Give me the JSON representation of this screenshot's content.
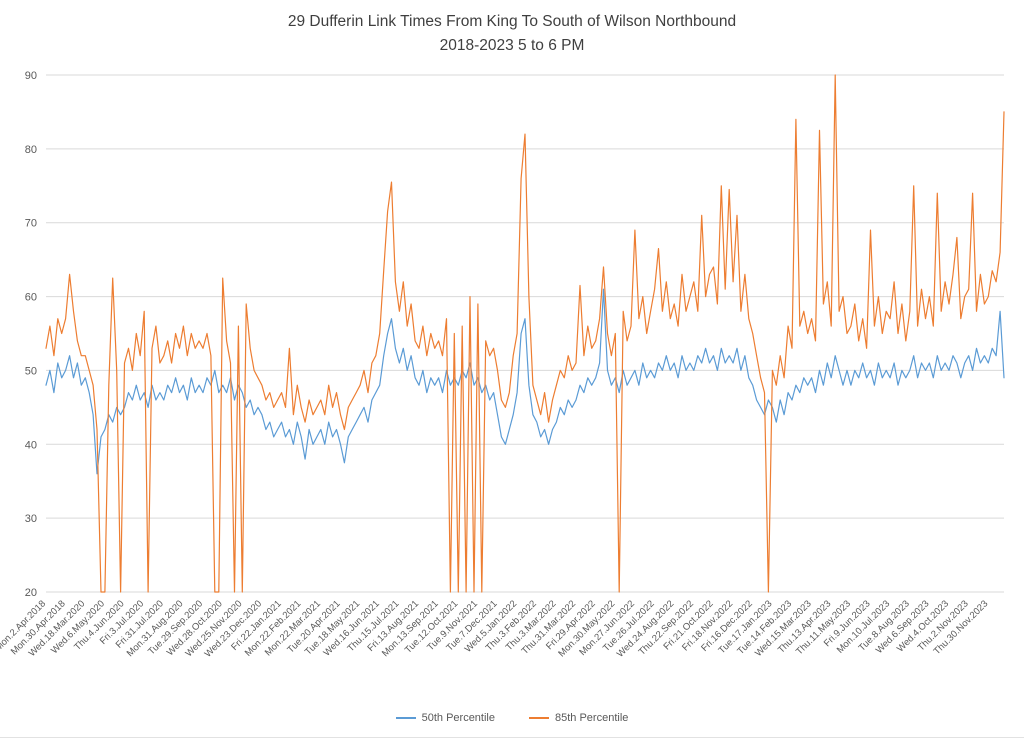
{
  "title": {
    "line1": "29 Dufferin Link Times From King To South of Wilson Northbound",
    "line2": "2018-2023 5 to 6 PM"
  },
  "legend": [
    {
      "label": "50th Percentile",
      "color": "#5B9BD5"
    },
    {
      "label": "85th Percentile",
      "color": "#ED7D31"
    }
  ],
  "chart_data": {
    "type": "line",
    "title": "29 Dufferin Link Times From King To South of Wilson Northbound",
    "subtitle": "2018-2023 5 to 6 PM",
    "xlabel": "",
    "ylabel": "",
    "ylim": [
      20,
      90
    ],
    "yticks": [
      20,
      30,
      40,
      50,
      60,
      70,
      80,
      90
    ],
    "grid": "horizontal",
    "legend_position": "bottom",
    "x_label_every": 5,
    "x_tick_labels": [
      "Mon.2.Apr.2018",
      "Mon.30.Apr.2018",
      "Wed.18.Mar.2020",
      "Wed.6.May.2020",
      "Thu.4.Jun.2020",
      "Fri.3.Jul.2020",
      "Fri.31.Jul.2020",
      "Mon.31.Aug.2020",
      "Tue.29.Sep.2020",
      "Wed.28.Oct.2020",
      "Wed.25.Nov.2020",
      "Wed.23.Dec.2020",
      "Fri.22.Jan.2021",
      "Mon.22.Feb.2021",
      "Mon.22.Mar.2021",
      "Tue.20.Apr.2021",
      "Tue.18.May.2021",
      "Wed.16.Jun.2021",
      "Thu.15.Jul.2021",
      "Fri.13.Aug.2021",
      "Mon.13.Sep.2021",
      "Tue.12.Oct.2021",
      "Tue.9.Nov.2021",
      "Tue.7.Dec.2021",
      "Wed.5.Jan.2022",
      "Thu.3.Feb.2022",
      "Thu.3.Mar.2022",
      "Thu.31.Mar.2022",
      "Fri.29.Apr.2022",
      "Mon.30.May.2022",
      "Mon.27.Jun.2022",
      "Tue.26.Jul.2022",
      "Wed.24.Aug.2022",
      "Thu.22.Sep.2022",
      "Fri.21.Oct.2022",
      "Fri.18.Nov.2022",
      "Fri.16.Dec.2022",
      "Tue.17.Jan.2023",
      "Tue.14.Feb.2023",
      "Wed.15.Mar.2023",
      "Thu.13.Apr.2023",
      "Thu.11.May.2023",
      "Fri.9.Jun.2023",
      "Mon.10.Jul.2023",
      "Tue.8.Aug.2023",
      "Wed.6.Sep.2023",
      "Wed.4.Oct.2023",
      "Thu.2.Nov.2023",
      "Thu.30.Nov.2023"
    ],
    "series": [
      {
        "name": "50th Percentile",
        "color": "#5B9BD5",
        "values": [
          48,
          50,
          47,
          51,
          49,
          50,
          52,
          49,
          51,
          48,
          49,
          47,
          44,
          36,
          41,
          42,
          44,
          43,
          45,
          44,
          45,
          47,
          46,
          48,
          46,
          47,
          45,
          48,
          46,
          47,
          46,
          48,
          47,
          49,
          47,
          48,
          46,
          49,
          47,
          48,
          47,
          49,
          48,
          50,
          47,
          48,
          47,
          49,
          46,
          48,
          47,
          45,
          46,
          44,
          45,
          44,
          42,
          43,
          41,
          42,
          43,
          41,
          42,
          40,
          43,
          41,
          38,
          42,
          40,
          41,
          42,
          40,
          43,
          41,
          42,
          40,
          37.5,
          41,
          42,
          43,
          44,
          45,
          43,
          46,
          47,
          48,
          52,
          55,
          57,
          53,
          51,
          53,
          50,
          52,
          49,
          48,
          50,
          47,
          49,
          48,
          49,
          47,
          50,
          48,
          49,
          48,
          50,
          49,
          51,
          48,
          49,
          47,
          48,
          46,
          47,
          44,
          41,
          40,
          42,
          44,
          47,
          55,
          57,
          48,
          44,
          43,
          41,
          42,
          40,
          42,
          43,
          45,
          44,
          46,
          45,
          46,
          48,
          47,
          49,
          48,
          49,
          51,
          61,
          50,
          48,
          49,
          47,
          50,
          48,
          49,
          50,
          48,
          51,
          49,
          50,
          49,
          51,
          50,
          52,
          50,
          51,
          49,
          52,
          50,
          51,
          50,
          52,
          51,
          53,
          51,
          52,
          50,
          53,
          51,
          52,
          51,
          53,
          50,
          52,
          49,
          48,
          46,
          45,
          44,
          46,
          45,
          43,
          46,
          44,
          47,
          46,
          48,
          47,
          49,
          48,
          49,
          47,
          50,
          48,
          51,
          49,
          52,
          50,
          48,
          50,
          48,
          50,
          49,
          51,
          49,
          50,
          48,
          51,
          49,
          50,
          49,
          51,
          48,
          50,
          49,
          50,
          52,
          49,
          51,
          50,
          51,
          49,
          52,
          50,
          51,
          50,
          52,
          51,
          49,
          51,
          52,
          50,
          53,
          51,
          52,
          51,
          53,
          52,
          58,
          49
        ]
      },
      {
        "name": "85th Percentile",
        "color": "#ED7D31",
        "values": [
          53,
          56,
          52,
          57,
          55,
          57,
          63,
          58,
          54,
          52,
          52,
          50,
          48,
          42,
          20,
          20,
          48,
          62.5,
          50,
          20,
          51,
          53,
          50,
          55,
          52,
          58,
          20,
          53,
          56,
          51,
          52,
          54,
          51,
          55,
          53,
          56,
          52,
          55,
          53,
          54,
          53,
          55,
          52,
          20,
          20,
          62.5,
          54,
          51,
          20,
          56,
          20,
          59,
          53,
          50,
          49,
          48,
          46,
          47,
          45,
          46,
          47,
          45,
          53,
          44,
          48,
          45,
          43,
          46,
          44,
          45,
          46,
          44,
          48,
          45,
          47,
          44,
          42,
          45,
          46,
          47,
          48,
          50,
          47,
          51,
          52,
          55,
          63.5,
          71.5,
          75.5,
          62,
          58,
          62,
          56,
          59,
          54,
          53,
          56,
          52,
          55,
          53,
          54,
          52,
          57,
          20,
          55,
          20,
          56,
          20,
          60,
          20,
          59,
          20,
          54,
          52,
          53,
          50,
          46,
          45,
          47,
          52,
          55,
          76,
          82,
          60,
          48,
          46,
          44,
          47,
          43,
          46,
          48,
          50,
          49,
          52,
          50,
          51,
          61.5,
          52,
          56,
          53,
          54,
          57,
          64,
          55,
          52,
          55,
          20,
          58,
          54,
          56,
          69,
          57,
          60,
          55,
          58,
          61,
          66.5,
          58,
          62,
          57,
          59,
          56,
          63,
          58,
          60,
          62,
          58,
          71,
          60,
          63,
          64,
          59,
          75,
          61,
          74.5,
          62,
          71,
          58,
          63,
          57,
          55,
          52,
          49,
          47,
          20,
          50,
          48,
          52,
          49,
          56,
          53,
          84,
          56,
          58,
          55,
          57,
          54,
          82.5,
          59,
          62,
          56,
          90,
          58,
          60,
          55,
          56,
          59,
          54,
          57,
          53,
          69,
          56,
          60,
          55,
          58,
          57,
          62,
          55,
          59,
          54,
          58,
          75,
          56,
          61,
          57,
          60,
          56,
          74,
          58,
          62,
          59,
          63,
          68,
          57,
          60,
          61,
          74,
          58,
          63,
          59,
          60,
          63.5,
          62,
          66,
          85
        ]
      }
    ]
  }
}
